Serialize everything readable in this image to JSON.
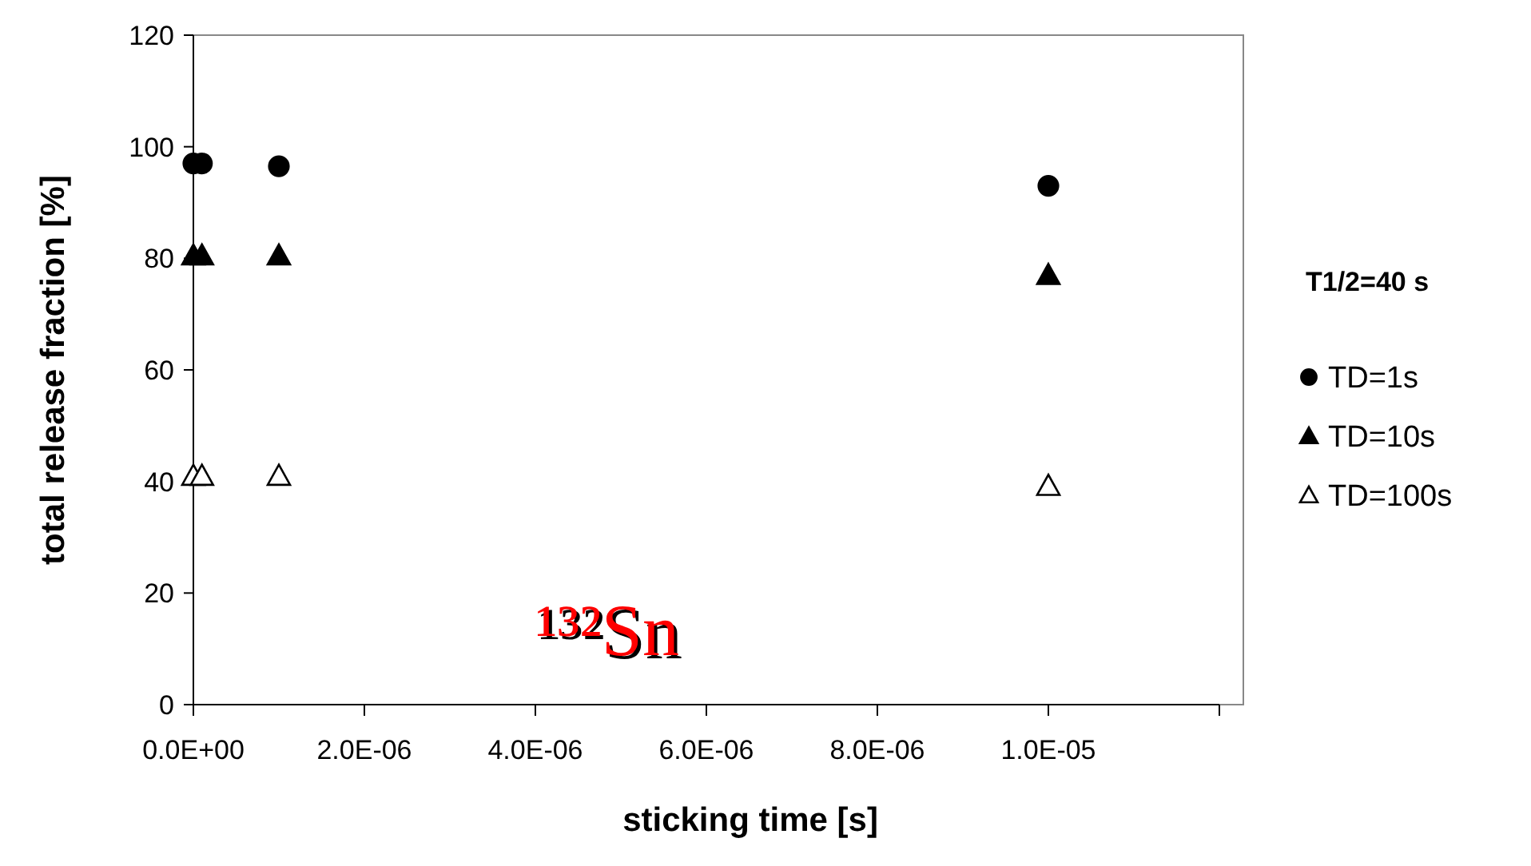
{
  "chart_data": {
    "type": "scatter",
    "xlabel": "sticking time [s]",
    "ylabel": "total release fraction [%]",
    "legend_title": "T1/2=40 s",
    "xlim": [
      0,
      1.2e-05
    ],
    "xticks": [
      {
        "value": 0,
        "label": "0.0E+00"
      },
      {
        "value": 2e-06,
        "label": "2.0E-06"
      },
      {
        "value": 4e-06,
        "label": "4.0E-06"
      },
      {
        "value": 6e-06,
        "label": "6.0E-06"
      },
      {
        "value": 8e-06,
        "label": "8.0E-06"
      },
      {
        "value": 1e-05,
        "label": "1.0E-05"
      },
      {
        "value": 1.2e-05,
        "label": null
      }
    ],
    "ylim": [
      0,
      120
    ],
    "yticks": [
      0,
      20,
      40,
      60,
      80,
      100,
      120
    ],
    "x": [
      0,
      1e-07,
      1e-06,
      1e-05
    ],
    "series": [
      {
        "name": "TD=1s",
        "color": "#000000",
        "marker": "circle",
        "values": [
          97,
          97,
          96.5,
          93
        ]
      },
      {
        "name": "TD=10s",
        "color": "#000000",
        "marker": "triangle",
        "values": [
          80.5,
          80.5,
          80.5,
          77
        ]
      },
      {
        "name": "TD=100s",
        "color": "#ffffff",
        "marker": "triangle",
        "values": [
          41,
          41,
          41,
          39.2
        ]
      }
    ],
    "annotations": [
      "¹³²Sn"
    ],
    "legend": "right"
  }
}
